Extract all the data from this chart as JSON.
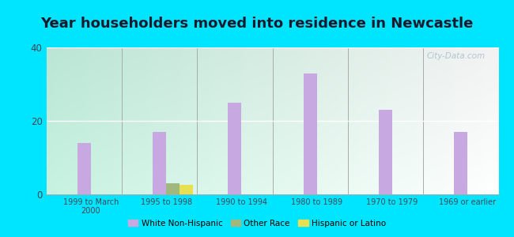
{
  "title": "Year householders moved into residence in Newcastle",
  "categories": [
    "1999 to March\n2000",
    "1995 to 1998",
    "1990 to 1994",
    "1980 to 1989",
    "1970 to 1979",
    "1969 or earlier"
  ],
  "white_non_hispanic": [
    14,
    17,
    25,
    33,
    23,
    17
  ],
  "other_race": [
    0,
    3,
    0,
    0,
    0,
    0
  ],
  "hispanic_or_latino": [
    0,
    2.5,
    0,
    0,
    0,
    0
  ],
  "bar_width": 0.18,
  "white_color": "#c8a8e0",
  "other_race_color": "#a0b880",
  "hispanic_color": "#e8e050",
  "ylim": [
    0,
    40
  ],
  "yticks": [
    0,
    20,
    40
  ],
  "background_outer": "#00e5ff",
  "title_fontsize": 13,
  "watermark": "City-Data.com"
}
